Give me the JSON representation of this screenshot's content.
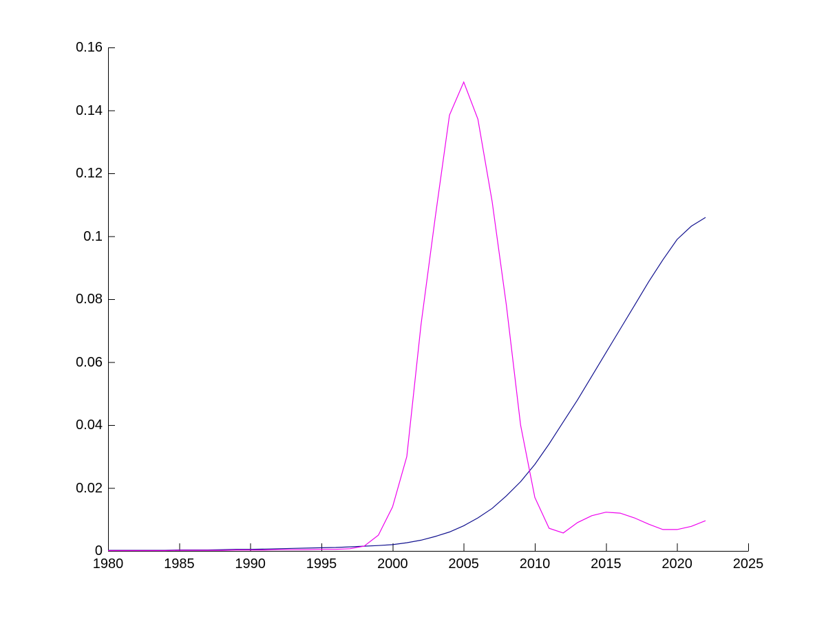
{
  "figure": {
    "background_color": "#ffffff",
    "axis_color": "#000000",
    "title": ""
  },
  "chart_data": {
    "type": "line",
    "title": "",
    "xlabel": "",
    "ylabel": "",
    "xlim": [
      1980,
      2025
    ],
    "ylim": [
      0,
      0.16
    ],
    "grid": false,
    "legend_position": "none",
    "xticks": [
      1980,
      1985,
      1990,
      1995,
      2000,
      2005,
      2010,
      2015,
      2020,
      2025
    ],
    "xtick_labels": [
      "1980",
      "1985",
      "1990",
      "1995",
      "2000",
      "2005",
      "2010",
      "2015",
      "2020",
      "2025"
    ],
    "yticks": [
      0,
      0.02,
      0.04,
      0.06,
      0.08,
      0.1,
      0.12,
      0.14,
      0.16
    ],
    "ytick_labels": [
      "0",
      "0.02",
      "0.04",
      "0.06",
      "0.08",
      "0.1",
      "0.12",
      "0.14",
      "0.16"
    ],
    "x": [
      1980,
      1981,
      1982,
      1983,
      1984,
      1985,
      1986,
      1987,
      1988,
      1989,
      1990,
      1991,
      1992,
      1993,
      1994,
      1995,
      1996,
      1997,
      1998,
      1999,
      2000,
      2001,
      2002,
      2003,
      2004,
      2005,
      2006,
      2007,
      2008,
      2009,
      2010,
      2011,
      2012,
      2013,
      2014,
      2015,
      2016,
      2017,
      2018,
      2019,
      2020,
      2021,
      2022
    ],
    "series": [
      {
        "name": "dark-blue-curve",
        "color": "#10108E",
        "values": [
          0.0002,
          0.0002,
          0.0002,
          0.0002,
          0.0002,
          0.0003,
          0.0003,
          0.0003,
          0.0004,
          0.0005,
          0.0005,
          0.0006,
          0.0007,
          0.0008,
          0.0009,
          0.001,
          0.0011,
          0.0013,
          0.0015,
          0.0017,
          0.002,
          0.0026,
          0.0034,
          0.0046,
          0.006,
          0.008,
          0.0105,
          0.0135,
          0.0175,
          0.022,
          0.0275,
          0.034,
          0.041,
          0.048,
          0.0555,
          0.063,
          0.0705,
          0.078,
          0.0855,
          0.0925,
          0.099,
          0.1032,
          0.106
        ]
      },
      {
        "name": "magenta-curve",
        "color": "#EE00EE",
        "values": [
          0.0001,
          0.0001,
          0.0001,
          0.0001,
          0.0001,
          0.0002,
          0.0002,
          0.0002,
          0.0002,
          0.0003,
          0.0003,
          0.0003,
          0.0004,
          0.0004,
          0.0004,
          0.0005,
          0.0005,
          0.0007,
          0.0015,
          0.005,
          0.014,
          0.03,
          0.072,
          0.106,
          0.1385,
          0.149,
          0.1372,
          0.111,
          0.078,
          0.04,
          0.017,
          0.0072,
          0.0057,
          0.009,
          0.0112,
          0.0123,
          0.012,
          0.0105,
          0.0085,
          0.0068,
          0.0068,
          0.0078,
          0.0096
        ]
      }
    ]
  }
}
